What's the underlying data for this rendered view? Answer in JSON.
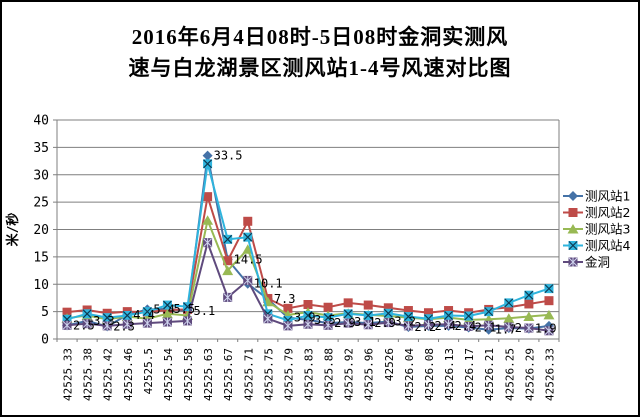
{
  "chart_data": {
    "type": "line",
    "title": "2016年6月4日08时-5日08时金洞实测风速与白龙湖景区测风站1-4号风速对比图",
    "title_lines": [
      "2016年6月4日08时-5日08时金洞实测风",
      "速与白龙湖景区测风站1-4号风速对比图"
    ],
    "xlabel": "",
    "ylabel": "米/秒",
    "ylim": [
      0,
      40
    ],
    "ytick_step": 5,
    "grid": true,
    "legend_position": "right",
    "gridline_color": "#7f7f7f",
    "categories": [
      "42525.33",
      "42525.38",
      "42525.42",
      "42525.46",
      "42525.5",
      "42525.54",
      "42525.58",
      "42525.63",
      "42525.67",
      "42525.71",
      "42525.75",
      "42525.79",
      "42525.83",
      "42525.88",
      "42525.92",
      "42525.96",
      "42526",
      "42526.04",
      "42526.08",
      "42526.13",
      "42526.17",
      "42526.21",
      "42526.25",
      "42526.29",
      "42526.33"
    ],
    "series": [
      {
        "name": "测风站1",
        "marker": "diamond",
        "color": "#4572a7",
        "values": [
          2.5,
          3.3,
          2.3,
          4.4,
          5.4,
          5.5,
          5.1,
          33.5,
          14.5,
          10.1,
          7.3,
          3.9,
          3.5,
          2.9,
          3.1,
          2.9,
          3.2,
          2.2,
          2.4,
          2.4,
          2.1,
          1.7,
          2.0,
          1.9,
          2.4
        ],
        "labels": [
          "2.5",
          "3.3",
          "2.3",
          "4.4",
          "5.4",
          "5.5",
          "5.1",
          "33.5",
          "14.5",
          "10.1",
          "7.3",
          "3.9",
          "3.5",
          "2.9",
          "3.1",
          "2.9",
          "3.2",
          "2.2",
          "2.4",
          "2.4",
          "2.1",
          "1.7",
          "2",
          "1.9",
          ""
        ]
      },
      {
        "name": "测风站2",
        "marker": "square",
        "color": "#be4b48",
        "values": [
          4.9,
          5.3,
          4.7,
          5.0,
          4.9,
          5.3,
          5.4,
          26.0,
          14.3,
          21.5,
          7.4,
          5.6,
          6.3,
          5.8,
          6.6,
          6.2,
          5.7,
          5.2,
          4.8,
          5.2,
          4.8,
          5.4,
          5.8,
          6.4,
          7.0
        ]
      },
      {
        "name": "测风站3",
        "marker": "triangle",
        "color": "#98b954",
        "values": [
          3.8,
          4.3,
          3.6,
          4.1,
          3.7,
          4.6,
          4.3,
          21.7,
          12.5,
          16.4,
          6.8,
          4.4,
          4.9,
          4.3,
          4.7,
          4.4,
          4.2,
          3.9,
          3.6,
          3.9,
          3.5,
          3.6,
          3.8,
          4.1,
          4.4
        ]
      },
      {
        "name": "测风站4",
        "marker": "x",
        "color": "#2fb4dd",
        "values": [
          3.6,
          4.6,
          3.9,
          4.3,
          5.0,
          6.2,
          5.9,
          32.0,
          18.2,
          18.6,
          4.6,
          3.4,
          4.3,
          3.9,
          4.6,
          4.3,
          4.7,
          4.1,
          3.7,
          4.3,
          4.2,
          5.0,
          6.6,
          8.0,
          9.2
        ]
      },
      {
        "name": "金洞",
        "marker": "star",
        "color": "#5f4a7d",
        "values": [
          2.5,
          2.8,
          2.4,
          2.7,
          2.9,
          3.1,
          3.3,
          17.6,
          7.6,
          10.7,
          3.7,
          2.4,
          2.7,
          2.5,
          2.9,
          2.6,
          3.0,
          2.4,
          2.6,
          2.7,
          2.3,
          2.5,
          2.2,
          2.0,
          1.5
        ]
      }
    ],
    "peak_annotation": "33.5"
  }
}
